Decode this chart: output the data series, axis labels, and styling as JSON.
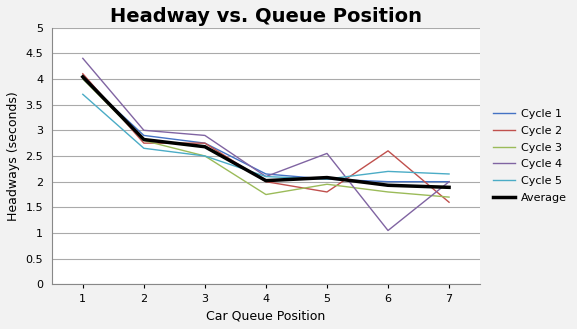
{
  "title": "Headway vs. Queue Position",
  "xlabel": "Car Queue Position",
  "ylabel": "Headways (seconds)",
  "x": [
    1,
    2,
    3,
    4,
    5,
    6,
    7
  ],
  "cycle1": [
    4.0,
    2.9,
    2.75,
    2.15,
    2.05,
    2.0,
    2.0
  ],
  "cycle2": [
    4.1,
    2.75,
    2.75,
    2.0,
    1.8,
    2.6,
    1.6
  ],
  "cycle3": [
    4.0,
    2.8,
    2.5,
    1.75,
    1.95,
    1.8,
    1.7
  ],
  "cycle4": [
    4.4,
    3.0,
    2.9,
    2.1,
    2.55,
    1.05,
    2.0
  ],
  "cycle5": [
    3.7,
    2.65,
    2.5,
    2.1,
    2.05,
    2.2,
    2.15
  ],
  "average": [
    4.04,
    2.82,
    2.68,
    2.02,
    2.08,
    1.93,
    1.89
  ],
  "cycle_colors": [
    "#4472c4",
    "#c0504d",
    "#9bbb59",
    "#8064a2",
    "#4bacc6"
  ],
  "cycle_labels": [
    "Cycle 1",
    "Cycle 2",
    "Cycle 3",
    "Cycle 4",
    "Cycle 5"
  ],
  "avg_color": "#000000",
  "ylim": [
    0,
    5
  ],
  "yticks": [
    0,
    0.5,
    1.0,
    1.5,
    2.0,
    2.5,
    3.0,
    3.5,
    4.0,
    4.5,
    5.0
  ],
  "xlim": [
    0.5,
    7.5
  ],
  "bg_color": "#f2f2f2",
  "plot_bg_color": "#ffffff",
  "grid_color": "#aaaaaa",
  "title_fontsize": 14,
  "label_fontsize": 9,
  "tick_fontsize": 8,
  "legend_fontsize": 8
}
